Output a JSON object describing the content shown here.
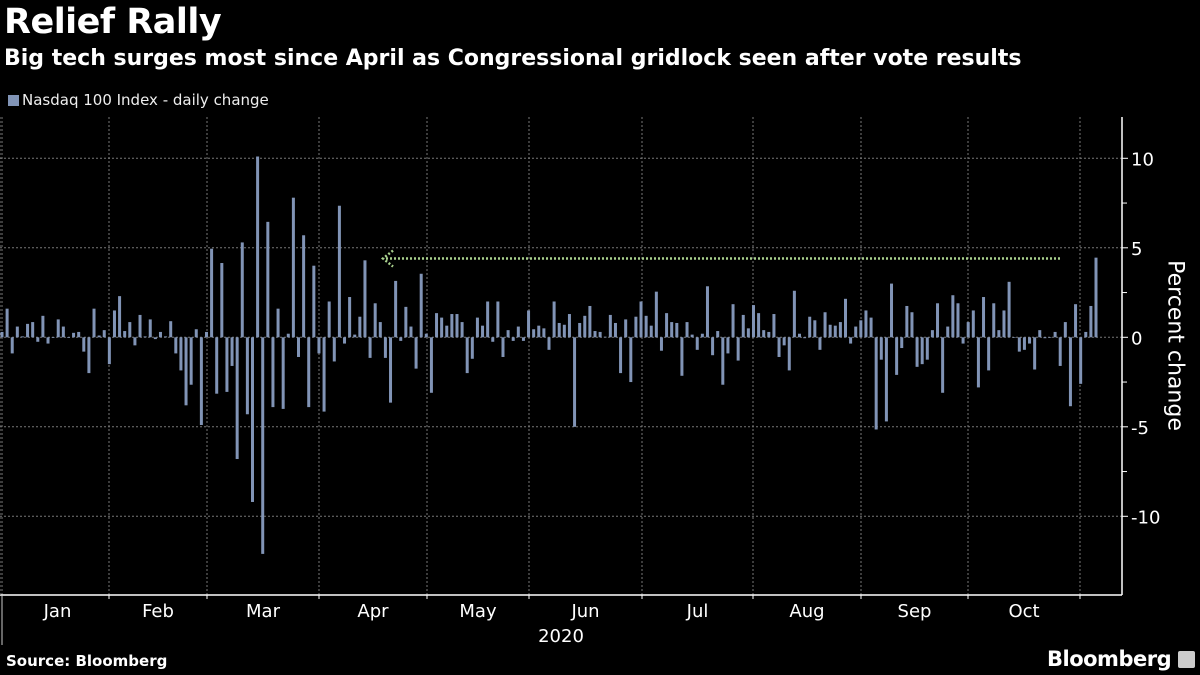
{
  "colors": {
    "background": "#000000",
    "bar": "#8194b6",
    "annotation": "#a9d18e",
    "grid": "#777777",
    "text": "#ffffff"
  },
  "header": {
    "title": "Relief Rally",
    "subtitle": "Big tech surges most since April as Congressional gridlock seen after vote results"
  },
  "footer": {
    "source": "Source: Bloomberg",
    "brand": "Bloomberg",
    "brand_icon": "bloomberg-chart-icon"
  },
  "chart_data": {
    "type": "bar",
    "title": "Relief Rally",
    "legend": [
      {
        "label": "Nasdaq 100 Index - daily change",
        "position": "top-left"
      }
    ],
    "xlabel": "2020",
    "ylabel": "Percent change",
    "ylim": [
      -14.5,
      12.3
    ],
    "yticks": [
      10,
      5,
      0,
      -5,
      -10
    ],
    "ytick_labels": [
      "10",
      "5",
      "0",
      "-5",
      "-10"
    ],
    "grid": true,
    "x_tick_labels": [
      "Jan",
      "Feb",
      "Mar",
      "Apr",
      "May",
      "Jun",
      "Jul",
      "Aug",
      "Sep",
      "Oct"
    ],
    "x_range": "2020-01-02 to 2020-11-04 (trading days)",
    "annotation": {
      "type": "dotted-arrow",
      "level": 4.4,
      "from": "Nov 4",
      "to": "April",
      "direction": "left"
    },
    "values": [
      0.3,
      1.6,
      -0.9,
      0.6,
      0.05,
      0.75,
      0.85,
      -0.25,
      1.2,
      -0.35,
      0,
      1.0,
      0.6,
      0,
      0.25,
      0.3,
      -0.8,
      -2.0,
      1.6,
      0.1,
      0.4,
      -1.5,
      1.5,
      2.3,
      0.35,
      0.85,
      -0.45,
      1.25,
      0.05,
      1.0,
      -0.1,
      0.3,
      0.05,
      0.9,
      -0.9,
      -1.85,
      -3.8,
      -2.65,
      0.45,
      -4.9,
      0.3,
      4.95,
      -3.15,
      4.15,
      -3.05,
      -1.6,
      -6.8,
      5.3,
      -4.3,
      -9.2,
      10.1,
      -12.1,
      6.45,
      -3.9,
      1.6,
      -4.0,
      0.2,
      7.8,
      -1.1,
      5.7,
      -3.9,
      4.0,
      -0.9,
      -4.15,
      2.0,
      -1.35,
      7.35,
      -0.35,
      2.25,
      0.15,
      1.15,
      4.3,
      -1.15,
      1.9,
      0.85,
      -1.15,
      -3.65,
      3.15,
      -0.2,
      1.7,
      0.6,
      -1.75,
      3.55,
      0.2,
      -3.1,
      1.35,
      1.1,
      0.65,
      1.3,
      1.3,
      0.85,
      -2.0,
      -1.2,
      1.1,
      0.65,
      2.0,
      -0.25,
      2.0,
      -1.1,
      0.4,
      -0.2,
      0.6,
      -0.2,
      1.5,
      0.45,
      0.65,
      0.5,
      -0.7,
      2.0,
      0.8,
      0.7,
      1.3,
      -5.0,
      0.8,
      1.2,
      1.75,
      0.35,
      0.3,
      0.03,
      1.25,
      0.8,
      -2.0,
      1.0,
      -2.5,
      1.15,
      2.0,
      1.2,
      0.65,
      2.55,
      -0.75,
      1.35,
      0.85,
      0.8,
      -2.15,
      0.85,
      0.15,
      -0.7,
      0.2,
      2.85,
      -1.0,
      0.35,
      -2.65,
      -0.9,
      1.85,
      -1.3,
      1.25,
      0.5,
      1.8,
      1.35,
      0.4,
      0.3,
      1.3,
      -1.1,
      -0.45,
      -1.85,
      2.6,
      0.2,
      -0.05,
      1.15,
      0.95,
      -0.7,
      1.4,
      0.7,
      0.65,
      0.85,
      2.15,
      -0.35,
      0.6,
      0.95,
      1.5,
      1.1,
      -5.15,
      -1.25,
      -4.7,
      3.0,
      -2.1,
      -0.6,
      1.75,
      1.4,
      -1.65,
      -1.5,
      -1.25,
      0.4,
      1.9,
      -3.1,
      0.6,
      2.35,
      1.9,
      -0.35,
      0.85,
      1.5,
      -2.8,
      2.25,
      -1.85,
      1.9,
      0.4,
      1.5,
      3.1,
      0,
      -0.8,
      -0.7,
      -0.35,
      -1.8,
      0.4,
      -0.05,
      0,
      0.3,
      -1.6,
      0.85,
      -3.85,
      1.85,
      -2.6,
      0.3,
      1.75,
      4.45
    ]
  }
}
